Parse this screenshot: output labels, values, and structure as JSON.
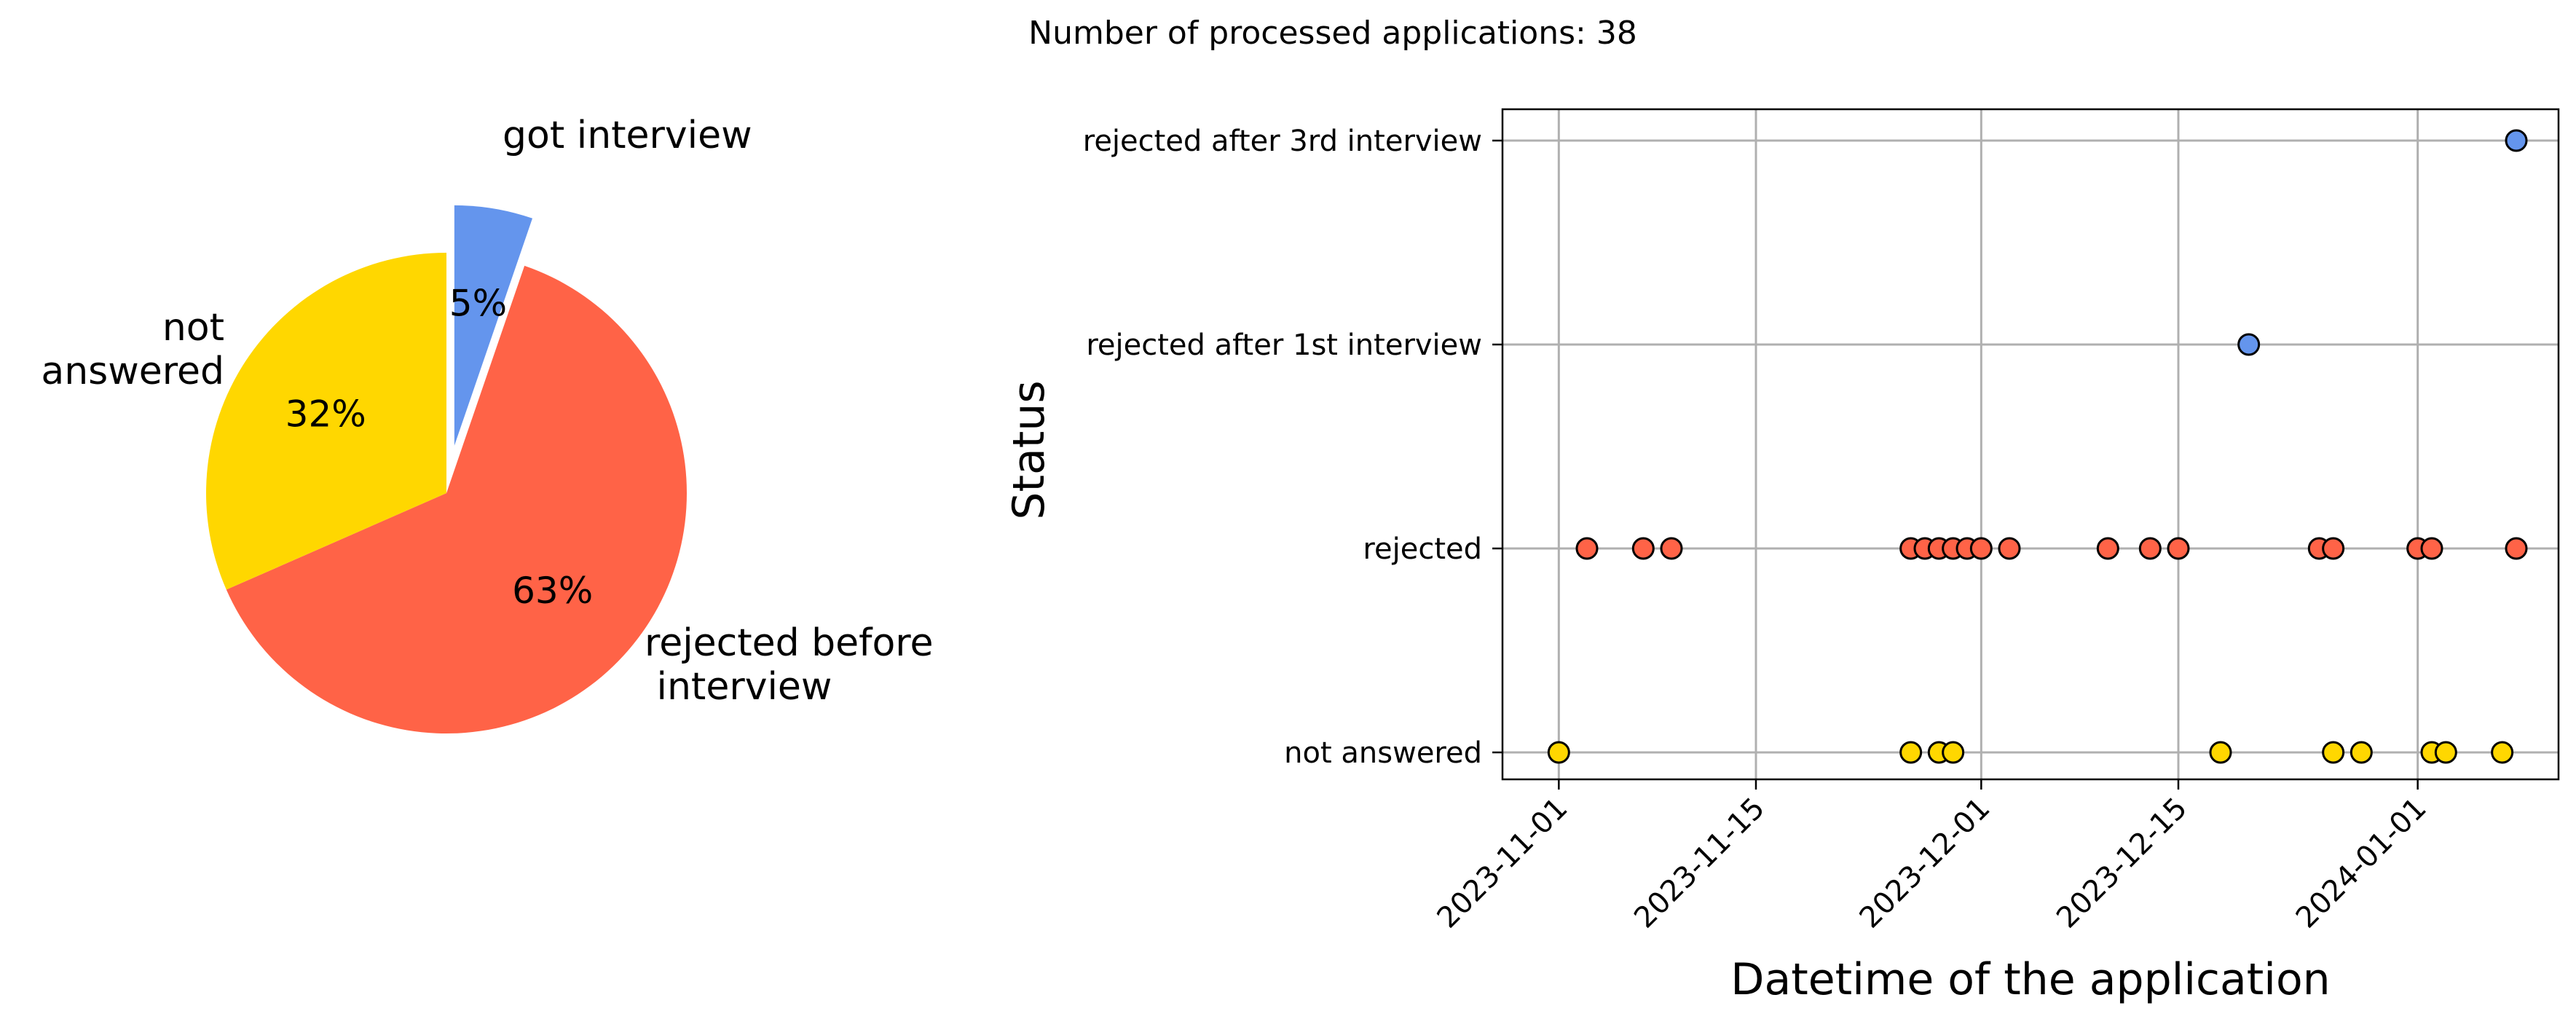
{
  "figure_title": "Number of processed applications: 38",
  "colors": {
    "got_interview": "#6495ED",
    "rejected_before_interview": "#FF6347",
    "not_answered": "#FFD700",
    "grid": "#b0b0b0"
  },
  "chart_data": [
    {
      "type": "pie",
      "title": "",
      "slices": [
        {
          "label": "got interview",
          "value": 2,
          "pct_label": "5%",
          "color": "#6495ED",
          "exploded": true
        },
        {
          "label": "rejected before\n interview",
          "value": 24,
          "pct_label": "63%",
          "color": "#FF6347",
          "exploded": false
        },
        {
          "label": "not\nanswered",
          "value": 12,
          "pct_label": "32%",
          "color": "#FFD700",
          "exploded": false
        }
      ]
    },
    {
      "type": "scatter",
      "title": "",
      "xlabel": "Datetime of the application",
      "ylabel": "Status",
      "x_type": "date",
      "xlim": [
        "2023-10-28",
        "2024-01-11"
      ],
      "x_ticks": [
        "2023-11-01",
        "2023-11-15",
        "2023-12-01",
        "2023-12-15",
        "2024-01-01"
      ],
      "categories": [
        "not answered",
        "rejected",
        "rejected after 1st interview",
        "rejected after 3rd interview"
      ],
      "grid": true,
      "series": [
        {
          "category": "not answered",
          "color": "#FFD700",
          "x": [
            "2023-11-01",
            "2023-11-26",
            "2023-11-28",
            "2023-11-29",
            "2023-12-18",
            "2023-12-26",
            "2023-12-28",
            "2024-01-02",
            "2024-01-03",
            "2024-01-07"
          ]
        },
        {
          "category": "rejected",
          "color": "#FF6347",
          "x": [
            "2023-11-03",
            "2023-11-07",
            "2023-11-09",
            "2023-11-26",
            "2023-11-27",
            "2023-11-28",
            "2023-11-29",
            "2023-11-30",
            "2023-12-01",
            "2023-12-03",
            "2023-12-10",
            "2023-12-13",
            "2023-12-15",
            "2023-12-25",
            "2023-12-26",
            "2024-01-01",
            "2024-01-02",
            "2024-01-08"
          ]
        },
        {
          "category": "rejected after 1st interview",
          "color": "#6495ED",
          "x": [
            "2023-12-20"
          ]
        },
        {
          "category": "rejected after 3rd interview",
          "color": "#6495ED",
          "x": [
            "2024-01-08"
          ]
        }
      ]
    }
  ]
}
